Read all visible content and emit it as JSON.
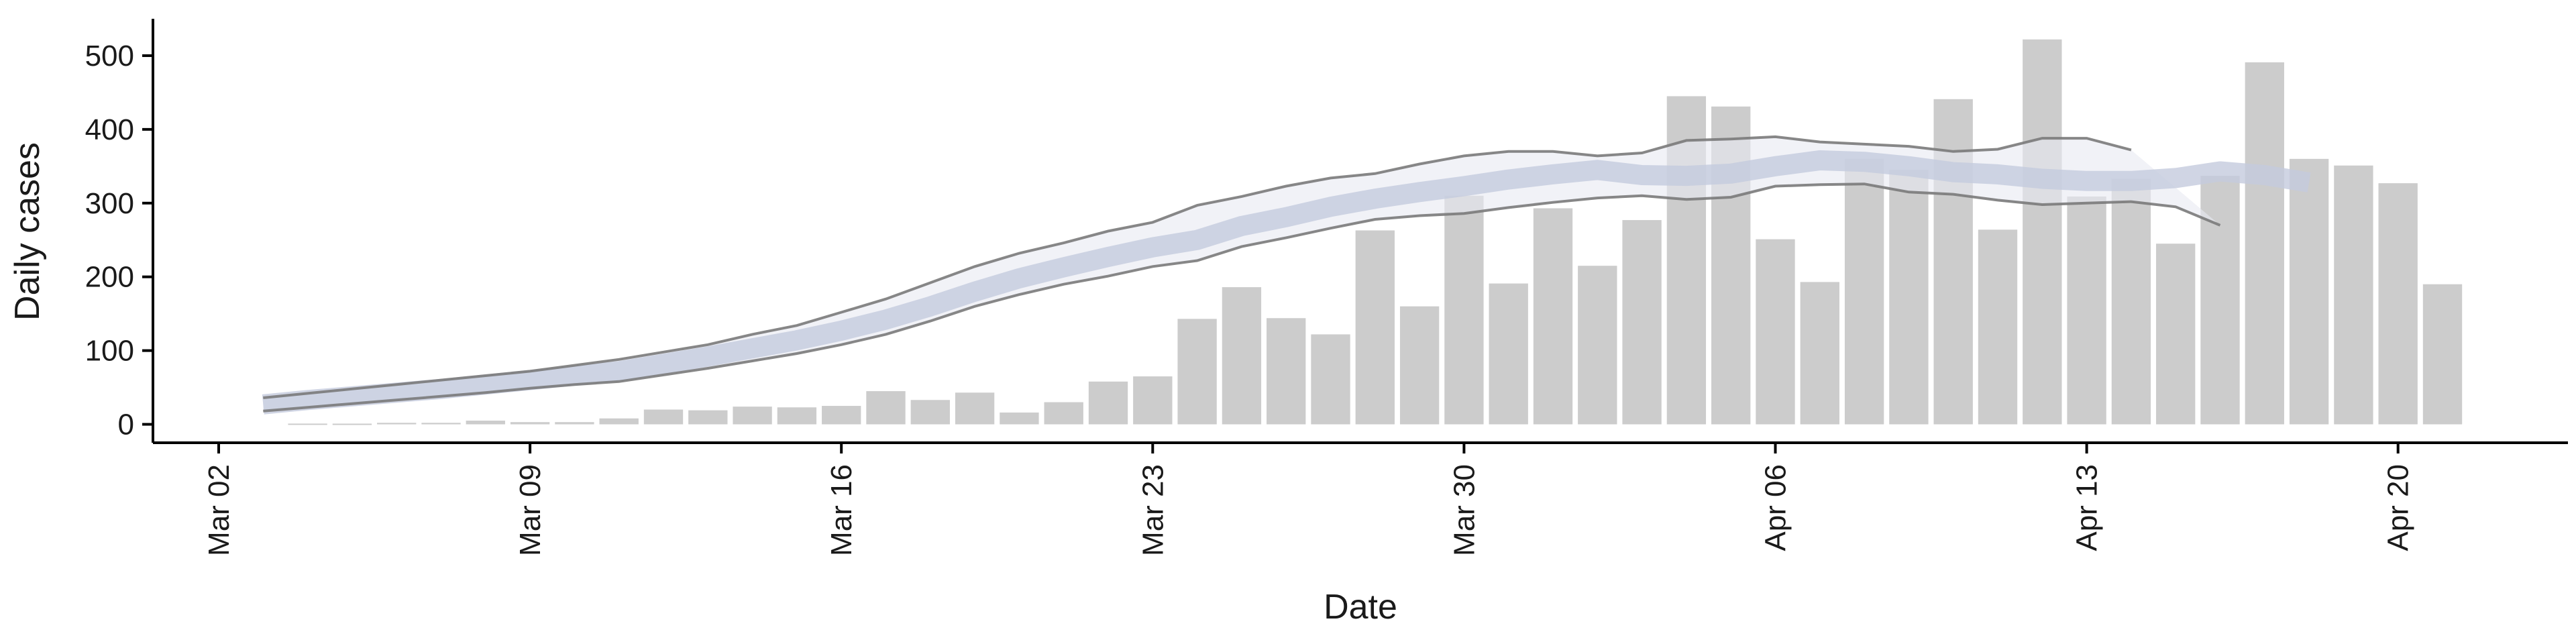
{
  "chart_data": {
    "type": "bar",
    "xlabel": "Date",
    "ylabel": "Daily cases",
    "ylim": [
      -25,
      550
    ],
    "grid": false,
    "x_tick_labels": [
      "Mar 02",
      "Mar 09",
      "Mar 16",
      "Mar 23",
      "Mar 30",
      "Apr 06",
      "Apr 13",
      "Apr 20"
    ],
    "y_tick_labels": [
      "0",
      "100",
      "200",
      "300",
      "400",
      "500"
    ],
    "y_ticks": [
      0,
      100,
      200,
      300,
      400,
      500
    ],
    "x_ticks": [
      "2020-03-02",
      "2020-03-09",
      "2020-03-16",
      "2020-03-23",
      "2020-03-30",
      "2020-04-06",
      "2020-04-13",
      "2020-04-20"
    ],
    "bars": {
      "start_date": "2020-03-04",
      "values": [
        1,
        0,
        2,
        2,
        5,
        3,
        3,
        8,
        20,
        19,
        24,
        23,
        25,
        45,
        33,
        43,
        16,
        30,
        58,
        65,
        143,
        186,
        144,
        122,
        263,
        160,
        310,
        191,
        293,
        215,
        277,
        445,
        431,
        251,
        193,
        360,
        345,
        441,
        264,
        522,
        309,
        333,
        245,
        337,
        491,
        360,
        351,
        327,
        190
      ],
      "color": "#cccccc"
    },
    "estimate": {
      "start_date": "2020-03-03",
      "median": [
        27,
        33,
        38,
        43,
        48,
        54,
        60,
        66,
        72,
        82,
        92,
        103,
        114,
        127,
        142,
        160,
        180,
        198,
        213,
        227,
        240,
        250,
        269,
        281,
        295,
        306,
        315,
        323,
        332,
        339,
        345,
        338,
        337,
        340,
        350,
        358,
        356,
        350,
        342,
        339,
        333,
        330,
        330,
        334,
        343,
        338,
        328
      ],
      "outer_lower": [
        18,
        23,
        28,
        33,
        38,
        43,
        49,
        54,
        58,
        67,
        76,
        86,
        96,
        108,
        122,
        140,
        160,
        176,
        190,
        201,
        214,
        222,
        241,
        253,
        266,
        278,
        283,
        286,
        294,
        301,
        307,
        310,
        305,
        308,
        323,
        325,
        326,
        315,
        312,
        304,
        298,
        300,
        302,
        295,
        270
      ],
      "outer_upper": [
        36,
        42,
        48,
        54,
        60,
        66,
        72,
        80,
        88,
        98,
        108,
        122,
        134,
        152,
        170,
        192,
        214,
        232,
        246,
        262,
        274,
        297,
        309,
        323,
        334,
        340,
        353,
        364,
        370,
        370,
        364,
        368,
        385,
        387,
        390,
        383,
        380,
        377,
        370,
        373,
        388,
        388,
        372
      ],
      "band_color": "#e8eaf2",
      "median_color": "#c4cadd",
      "line_color": "#7a7a7a"
    }
  }
}
